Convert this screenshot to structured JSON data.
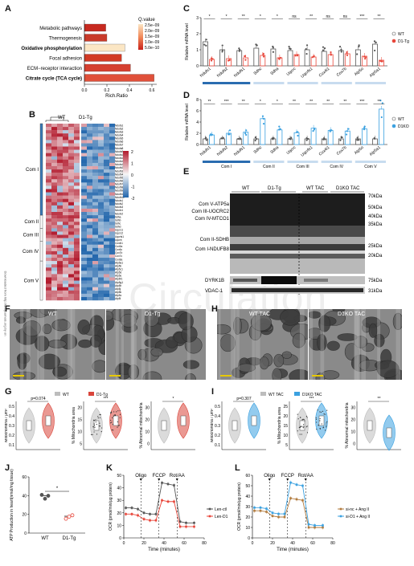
{
  "panels": {
    "A": "A",
    "B": "B",
    "C": "C",
    "D": "D",
    "E": "E",
    "F": "F",
    "G": "G",
    "H": "H",
    "I": "I",
    "J": "J",
    "K": "K",
    "L": "L"
  },
  "watermark": "Circulation",
  "panelA": {
    "terms": [
      "Metabolic pathways",
      "Thermogenesis",
      "Oxidative phosphorylation",
      "Focal adhesion",
      "ECM−receptor interaction",
      "Citrate cycle (TCA cycle)"
    ],
    "bold_terms": [
      false,
      false,
      true,
      false,
      false,
      true
    ],
    "rich_ratio": [
      0.19,
      0.2,
      0.36,
      0.33,
      0.41,
      0.62
    ],
    "colors": [
      "#c7291f",
      "#c93a2a",
      "#fbe6c4",
      "#d23a25",
      "#d54030",
      "#e0503a"
    ],
    "xlabel": "Rich.Ratio",
    "xticks": [
      "0.0",
      "0.2",
      "0.4",
      "0.6"
    ],
    "legend_title": "Q.value",
    "legend_ticks": [
      "2.5e−09",
      "2.0e−09",
      "1.5e−09",
      "1.0e−09",
      "5.0e−10"
    ]
  },
  "panelB": {
    "groups": [
      "WT",
      "D1-Tg"
    ],
    "complexes": [
      "Com I",
      "Com II",
      "Com III",
      "Com IV",
      "Com V"
    ],
    "scale_ticks": [
      "2",
      "1",
      "0",
      "-1",
      "-2"
    ],
    "genes": [
      "Ndufa1",
      "Ndufa2",
      "Ndufa3",
      "Ndufa4",
      "Ndufa5",
      "Ndufa6",
      "Ndufa7",
      "Ndufa8",
      "Ndufa9",
      "Ndufa10",
      "Ndufa11",
      "Ndufa12",
      "Ndufa13",
      "Ndufb2",
      "Ndufb3",
      "Ndufb4",
      "Ndufb5",
      "Ndufb6",
      "Ndufb7",
      "Ndufb8",
      "Ndufb9",
      "Ndufb10",
      "Ndufb11",
      "Ndufs1",
      "Ndufs2",
      "Ndufs3",
      "Ndufv1",
      "Ndufv2",
      "Sdha",
      "Sdhb",
      "Sdhc",
      "Sdhd",
      "Uqcrc1",
      "Uqcrc2",
      "Uqcrfs1",
      "Uqcrb",
      "Cox4i1",
      "Cox5a",
      "Cox6c",
      "Cox7b",
      "Cox7c",
      "Cox8a",
      "Atp5a1",
      "Atp5b",
      "Atp5c1",
      "Atp5d",
      "Atp5e",
      "Atp5f1",
      "Atp5g1",
      "Atp5h",
      "Atp5j",
      "Atp5k",
      "Atp5o",
      "Atp5l"
    ]
  },
  "panelC": {
    "ylabel": "Relative mRNA level",
    "yticks": [
      "0",
      "1",
      "2",
      "3"
    ],
    "genes": [
      "Ndufv1",
      "Ndufs2",
      "Ndufs1",
      "Sdhc",
      "Sdha",
      "Uqcrc",
      "Uqcrfs1",
      "Cox4i1",
      "Cox7b",
      "Atp5o",
      "Atp5a1"
    ],
    "significance": [
      "*",
      "*",
      "**",
      "*",
      "*",
      "ns",
      "**",
      "ns",
      "ns",
      "***",
      "**"
    ],
    "series": [
      {
        "name": "WT",
        "color": "#555555",
        "values": [
          1.5,
          1.0,
          0.95,
          1.1,
          1.05,
          0.95,
          1.0,
          0.9,
          0.95,
          1.0,
          1.35
        ]
      },
      {
        "name": "D1-Tg",
        "color": "#e8463a",
        "values": [
          0.4,
          0.45,
          0.5,
          0.65,
          0.5,
          0.7,
          0.55,
          0.7,
          0.75,
          0.6,
          0.35
        ]
      }
    ],
    "complex_colors": [
      "#2a6cb0",
      "#8fb8de",
      "#a9c7e4",
      "#bcd3eb",
      "#cfdff0"
    ]
  },
  "panelD": {
    "ylabel": "Relative mRNA level",
    "yticks": [
      "0",
      "2",
      "4",
      "6",
      "8"
    ],
    "genes": [
      "Ndufv1",
      "Ndufs2",
      "Ndufs1",
      "Sdhc",
      "Sdha",
      "Uqcrc",
      "Uqcrfs1",
      "Cox4i1",
      "Cox7b",
      "Atp5o",
      "Atp5a1"
    ],
    "significance": [
      "**",
      "***",
      "**",
      "*",
      "*",
      "**",
      "**",
      "**",
      "**",
      "***",
      "**"
    ],
    "series": [
      {
        "name": "WT",
        "color": "#555555",
        "values": [
          1.0,
          1.0,
          1.0,
          1.0,
          1.0,
          1.0,
          1.0,
          1.0,
          1.0,
          1.0,
          1.0
        ]
      },
      {
        "name": "D1KO",
        "color": "#3ba1e0",
        "values": [
          1.7,
          2.0,
          2.2,
          4.6,
          2.6,
          2.1,
          2.9,
          2.5,
          2.4,
          2.8,
          6.3
        ]
      }
    ],
    "complex_labels": [
      "Com I",
      "Com II",
      "Com III",
      "Com IV",
      "Com V"
    ]
  },
  "panelE": {
    "groups": [
      "WT",
      "D1-Tg",
      "WT TAC",
      "D1KO TAC"
    ],
    "bands_left": [
      "Com V-ATP5a",
      "Com III-UOCRC2",
      "Com IV-MTCO1",
      "Com II-SDHB",
      "Com I-NDUFB8"
    ],
    "mw_right": [
      "70kDa",
      "50kDa",
      "40kDa",
      "35kDa",
      "25kDa",
      "20kDa"
    ],
    "row2_label": "DYRK1B",
    "row2_mw": "75kDa",
    "row3_label": "VDAC-1",
    "row3_mw": "31kDa"
  },
  "panelF": {
    "labels": [
      "WT",
      "D1-Tg"
    ],
    "side_text": "Downloaded from http://ahajournals.org by on"
  },
  "panelH": {
    "labels": [
      "WT TAC",
      "D1KO TAC"
    ]
  },
  "panelG": {
    "legend": [
      "WT",
      "D1-Tg"
    ],
    "colors": {
      "WT": "#bdbdbd",
      "D1-Tg": "#d9453b"
    },
    "plot1": {
      "ylabel": "Mitochondria / μm²",
      "p": "p=0.074",
      "yticks": [
        "0.1",
        "0.2",
        "0.3",
        "0.4",
        "0.5"
      ],
      "values": [
        0.33,
        0.42
      ]
    },
    "plot2": {
      "ylabel": "% Mitochondria area",
      "sig": "***",
      "yticks": [
        "5",
        "10",
        "15",
        "20"
      ]
    },
    "plot3": {
      "ylabel": "% Abnormal mitochondria",
      "sig": "*",
      "yticks": [
        "0",
        "10",
        "20",
        "30"
      ],
      "values": [
        12,
        20
      ]
    }
  },
  "panelI": {
    "legend": [
      "WT TAC",
      "D1KO TAC"
    ],
    "colors": {
      "WT TAC": "#bdbdbd",
      "D1KO TAC": "#3ba1e0"
    },
    "plot1": {
      "ylabel": "Mitochondria / μm²",
      "p": "p=0.307",
      "yticks": [
        "0.1",
        "0.2",
        "0.3",
        "0.4",
        "0.5"
      ],
      "values": [
        0.33,
        0.42
      ]
    },
    "plot2": {
      "ylabel": "% Mitochondria area",
      "sig": "***",
      "yticks": [
        "5",
        "10",
        "15",
        "20",
        "25"
      ]
    },
    "plot3": {
      "ylabel": "% Abnormal mitochondria",
      "sig": "**",
      "yticks": [
        "0",
        "10",
        "20",
        "30"
      ],
      "values": [
        22,
        10
      ]
    }
  },
  "panelJ": {
    "ylabel": "ATP Production in heart(nmol/mg tissue)",
    "yticks": [
      "0",
      "20",
      "40",
      "60"
    ],
    "categories": [
      "WT",
      "D1-Tg"
    ],
    "values": [
      40,
      18
    ],
    "sig": "*"
  },
  "chart_data": [
    {
      "type": "line",
      "ylabel": "OCR (pmol/min/μg protein)",
      "xlabel": "Time (minutes)",
      "xticks": [
        "0",
        "20",
        "40",
        "60",
        "80"
      ],
      "yticks": [
        "0",
        "10",
        "20",
        "30",
        "40",
        "50"
      ],
      "annotations": [
        "Oligo",
        "FCCP",
        "Rot/AA"
      ],
      "x": [
        2,
        8,
        14,
        20,
        26,
        32,
        38,
        44,
        50,
        56,
        62,
        70
      ],
      "series": [
        {
          "name": "Len-ctl",
          "color": "#555555",
          "values": [
            24,
            24,
            23,
            20,
            19,
            19,
            44,
            43,
            42,
            13,
            12,
            12
          ]
        },
        {
          "name": "Len-D1",
          "color": "#e8463a",
          "values": [
            19,
            19,
            18,
            15,
            14,
            14,
            30,
            29,
            29,
            9,
            9,
            9
          ]
        }
      ]
    },
    {
      "type": "line",
      "ylabel": "OCR (pmol/min/μg protein)",
      "xlabel": "Time (minutes)",
      "xticks": [
        "0",
        "20",
        "40",
        "60",
        "80"
      ],
      "yticks": [
        "0",
        "10",
        "20",
        "30",
        "40",
        "50",
        "60"
      ],
      "annotations": [
        "Oligo",
        "FCCP",
        "Rot/AA"
      ],
      "x": [
        2,
        8,
        14,
        20,
        26,
        32,
        38,
        44,
        50,
        56,
        62,
        70
      ],
      "series": [
        {
          "name": "si-nc + Ang II",
          "color": "#b27b3e",
          "values": [
            26,
            26,
            25,
            21,
            20,
            20,
            38,
            37,
            36,
            10,
            10,
            10
          ]
        },
        {
          "name": "si-D1 + Ang II",
          "color": "#3ba1e0",
          "values": [
            29,
            29,
            28,
            24,
            23,
            23,
            53,
            51,
            50,
            13,
            12,
            12
          ]
        }
      ]
    }
  ]
}
